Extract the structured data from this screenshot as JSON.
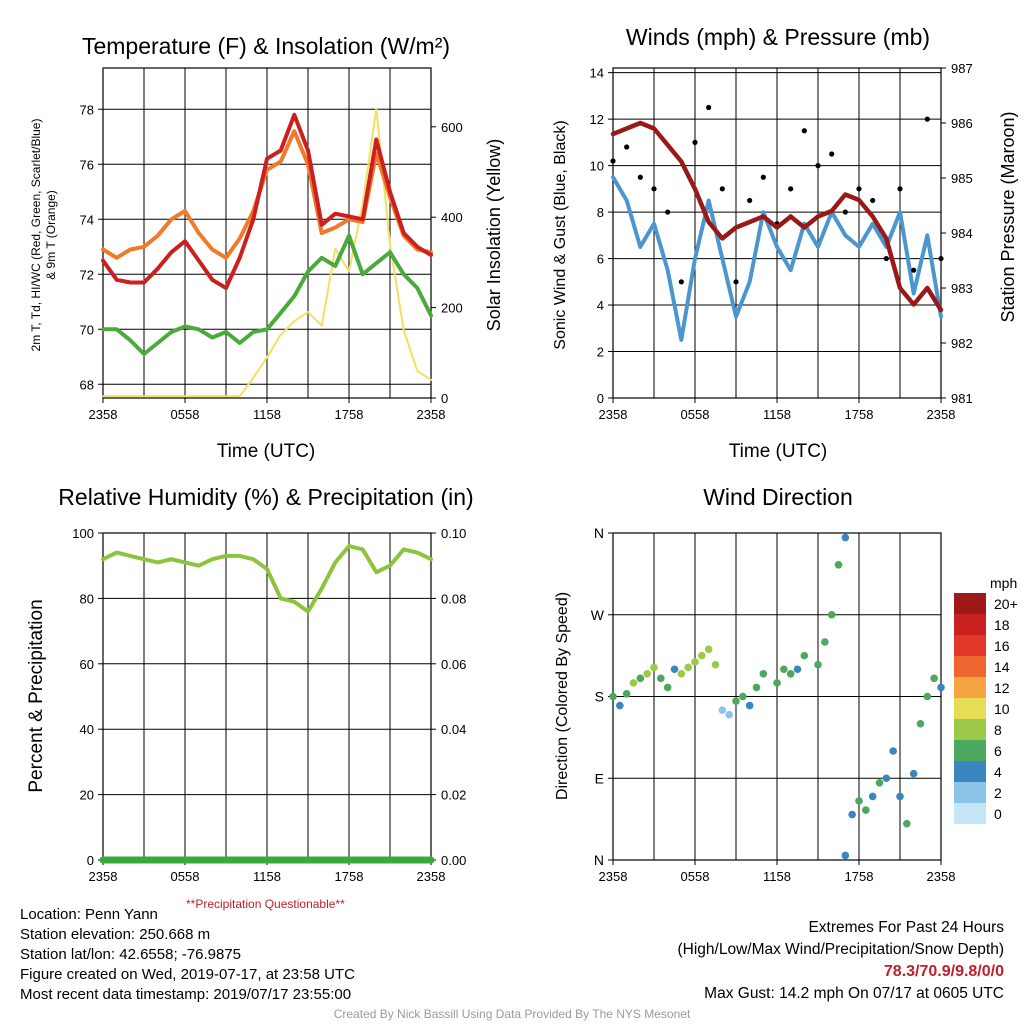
{
  "times": [
    "2358",
    "0558",
    "1158",
    "1758",
    "2358"
  ],
  "panels": {
    "temp": {
      "title": "Temperature (F) & Insolation (W/m²)",
      "ylabel_left_1": "2m T, Td, HI/WC (Red, Green, Scarlet/Blue)",
      "ylabel_left_2": "& 9m T (Orange)",
      "ylabel_right": "Solar Insolation (Yellow)",
      "xlabel": "Time (UTC)",
      "y_ticks": [
        "68",
        "70",
        "72",
        "74",
        "76",
        "78"
      ],
      "y2_ticks": [
        "0",
        "200",
        "400",
        "600"
      ]
    },
    "wind": {
      "title": "Winds (mph) & Pressure (mb)",
      "ylabel_left": "Sonic Wind & Gust (Blue, Black)",
      "ylabel_right": "Station Pressure (Maroon)",
      "xlabel": "Time (UTC)",
      "y_ticks": [
        "0",
        "2",
        "4",
        "6",
        "8",
        "10",
        "12",
        "14"
      ],
      "y2_ticks": [
        "981",
        "982",
        "983",
        "984",
        "985",
        "986",
        "987"
      ]
    },
    "rh": {
      "title": "Relative Humidity (%) & Precipitation (in)",
      "ylabel_left": "Percent & Precipitation",
      "y_ticks": [
        "0",
        "20",
        "40",
        "60",
        "80",
        "100"
      ],
      "y2_ticks": [
        "0.00",
        "0.02",
        "0.04",
        "0.06",
        "0.08",
        "0.10"
      ],
      "precip_note": "**Precipitation Questionable**"
    },
    "dir": {
      "title": "Wind Direction",
      "ylabel_left": "Direction (Colored By Speed)",
      "y_ticks": [
        "N",
        "E",
        "S",
        "W",
        "N"
      ],
      "legend_title": "mph",
      "legend_labels": [
        "20+",
        "18",
        "16",
        "14",
        "12",
        "10",
        "8",
        "6",
        "4",
        "2",
        "0"
      ],
      "legend_colors": [
        "#9e1a1a",
        "#c8211f",
        "#e2372b",
        "#ee6630",
        "#f5a540",
        "#e7dc55",
        "#9cc94a",
        "#4ba85e",
        "#3a86c0",
        "#8cc4e8",
        "#c5e6f7"
      ]
    }
  },
  "info": {
    "location": "Location: Penn Yann",
    "elevation": "Station elevation: 250.668 m",
    "latlon": "Station lat/lon: 42.6558; -76.9875",
    "created": "Figure created on Wed, 2019-07-17, at 23:58 UTC",
    "recent": "Most recent data timestamp: 2019/07/17 23:55:00"
  },
  "extremes": {
    "title": "Extremes For Past 24 Hours",
    "subtitle": "(High/Low/Max Wind/Precipitation/Snow Depth)",
    "values": "78.3/70.9/9.8/0/0",
    "gust": "Max Gust: 14.2 mph On 07/17 at 0605 UTC"
  },
  "credit": "Created By Nick Bassill Using Data Provided By The NYS Mesonet",
  "colors": {
    "temp": "#cc1f1f",
    "dewpoint": "#4aaa3c",
    "temp9m": "#f07a28",
    "insolation": "#f2e060",
    "wind": "#4b95d0",
    "gust": "#000000",
    "pressure": "#9b1818",
    "rh": "#8cc43e",
    "precip": "#3aa83a"
  },
  "chart_data": [
    {
      "type": "line",
      "title": "Temperature (F) & Insolation (W/m²)",
      "x_hours": [
        0,
        1,
        2,
        3,
        4,
        5,
        6,
        7,
        8,
        9,
        10,
        11,
        12,
        13,
        14,
        15,
        16,
        17,
        18,
        19,
        20,
        21,
        22,
        23,
        24
      ],
      "xlim": [
        0,
        24
      ],
      "ylim": [
        67.5,
        79.5
      ],
      "y2lim": [
        0,
        730
      ],
      "series": [
        {
          "key": "temp",
          "values": [
            72.5,
            71.8,
            71.7,
            71.7,
            72.2,
            72.8,
            73.2,
            72.5,
            71.8,
            71.5,
            72.6,
            74.0,
            76.2,
            76.5,
            77.8,
            76.5,
            73.8,
            74.2,
            74.1,
            74.0,
            76.9,
            75.0,
            73.5,
            73.0,
            72.7
          ]
        },
        {
          "key": "temp9m",
          "values": [
            72.9,
            72.6,
            72.9,
            73.0,
            73.4,
            74.0,
            74.3,
            73.5,
            72.9,
            72.6,
            73.3,
            74.3,
            75.8,
            76.1,
            77.2,
            76.0,
            73.5,
            73.7,
            74.0,
            73.9,
            76.4,
            74.8,
            73.4,
            72.9,
            72.8
          ]
        },
        {
          "key": "dewpoint",
          "values": [
            70.0,
            70.0,
            69.6,
            69.1,
            69.5,
            69.9,
            70.1,
            70.0,
            69.7,
            69.9,
            69.5,
            69.9,
            70.0,
            70.6,
            71.2,
            72.1,
            72.6,
            72.3,
            73.4,
            72.0,
            72.4,
            72.8,
            72.0,
            71.5,
            70.5
          ]
        },
        {
          "key": "insolation",
          "axis": "right",
          "values": [
            4,
            4,
            4,
            4,
            4,
            4,
            4,
            4,
            4,
            4,
            4,
            45,
            90,
            140,
            170,
            190,
            160,
            330,
            280,
            430,
            640,
            340,
            150,
            60,
            40
          ]
        }
      ]
    },
    {
      "type": "line",
      "title": "Winds (mph) & Pressure (mb)",
      "x_hours": [
        0,
        1,
        2,
        3,
        4,
        5,
        6,
        7,
        8,
        9,
        10,
        11,
        12,
        13,
        14,
        15,
        16,
        17,
        18,
        19,
        20,
        21,
        22,
        23,
        24
      ],
      "xlim": [
        0,
        24
      ],
      "ylim": [
        0,
        14.2
      ],
      "y2lim": [
        981,
        987
      ],
      "series": [
        {
          "key": "wind",
          "values": [
            9.5,
            8.5,
            6.5,
            7.5,
            5.5,
            2.5,
            6.0,
            8.5,
            6.0,
            3.5,
            5.0,
            8.0,
            6.5,
            5.5,
            7.5,
            6.5,
            8.0,
            7.0,
            6.5,
            7.5,
            6.5,
            8.0,
            4.5,
            7.0,
            3.5
          ]
        },
        {
          "key": "gust",
          "values": [
            10.2,
            10.8,
            9.5,
            9.0,
            8.0,
            5.0,
            11.0,
            12.5,
            9.0,
            5.0,
            8.5,
            9.5,
            7.5,
            9.0,
            11.5,
            10.0,
            10.5,
            8.0,
            9.0,
            8.5,
            6.0,
            9.0,
            5.5,
            12.0,
            6.0
          ]
        },
        {
          "key": "pressure",
          "axis": "right",
          "values": [
            985.8,
            985.9,
            986.0,
            985.9,
            985.6,
            985.3,
            984.8,
            984.2,
            983.9,
            984.1,
            984.2,
            984.3,
            984.1,
            984.3,
            984.1,
            984.3,
            984.4,
            984.7,
            984.6,
            984.3,
            983.9,
            983.0,
            982.7,
            983.0,
            982.6
          ]
        }
      ]
    },
    {
      "type": "line",
      "title": "Relative Humidity (%) & Precipitation (in)",
      "x_hours": [
        0,
        1,
        2,
        3,
        4,
        5,
        6,
        7,
        8,
        9,
        10,
        11,
        12,
        13,
        14,
        15,
        16,
        17,
        18,
        19,
        20,
        21,
        22,
        23,
        24
      ],
      "xlim": [
        0,
        24
      ],
      "ylim": [
        0,
        100
      ],
      "y2lim": [
        0,
        0.1
      ],
      "series": [
        {
          "key": "rh",
          "values": [
            92,
            94,
            93,
            92,
            91,
            92,
            91,
            90,
            92,
            93,
            93,
            92,
            89,
            80,
            79,
            76,
            83,
            91,
            96,
            95,
            88,
            90,
            95,
            94,
            92
          ]
        },
        {
          "key": "precip",
          "axis": "right",
          "values": [
            0,
            0,
            0,
            0,
            0,
            0,
            0,
            0,
            0,
            0,
            0,
            0,
            0,
            0,
            0,
            0,
            0,
            0,
            0,
            0,
            0,
            0,
            0,
            0,
            0
          ]
        }
      ]
    },
    {
      "type": "scatter",
      "title": "Wind Direction",
      "xlim": [
        0,
        24
      ],
      "ylim": [
        0,
        360
      ],
      "direction_deg": [
        [
          0,
          180
        ],
        [
          0.5,
          170
        ],
        [
          1,
          183
        ],
        [
          1.5,
          195
        ],
        [
          2,
          200
        ],
        [
          2.5,
          205
        ],
        [
          3,
          212
        ],
        [
          3.5,
          200
        ],
        [
          4,
          190
        ],
        [
          4.5,
          210
        ],
        [
          5,
          205
        ],
        [
          5.5,
          212
        ],
        [
          6,
          218
        ],
        [
          6.5,
          225
        ],
        [
          7,
          232
        ],
        [
          7.5,
          215
        ],
        [
          8,
          165
        ],
        [
          8.5,
          160
        ],
        [
          9,
          175
        ],
        [
          9.5,
          180
        ],
        [
          10,
          170
        ],
        [
          10.5,
          190
        ],
        [
          11,
          205
        ],
        [
          12,
          195
        ],
        [
          12.5,
          210
        ],
        [
          13,
          205
        ],
        [
          13.5,
          210
        ],
        [
          14,
          225
        ],
        [
          15,
          215
        ],
        [
          15.5,
          240
        ],
        [
          16,
          270
        ],
        [
          16.5,
          325
        ],
        [
          17,
          355
        ],
        [
          17,
          5
        ],
        [
          17.5,
          50
        ],
        [
          18,
          65
        ],
        [
          18.5,
          55
        ],
        [
          19,
          70
        ],
        [
          19.5,
          85
        ],
        [
          20,
          90
        ],
        [
          20.5,
          120
        ],
        [
          21,
          70
        ],
        [
          21.5,
          40
        ],
        [
          22,
          95
        ],
        [
          22.5,
          150
        ],
        [
          23,
          180
        ],
        [
          23.5,
          200
        ],
        [
          24,
          190
        ]
      ],
      "speed_mph": [
        5,
        4,
        6,
        7,
        6,
        8,
        7,
        6,
        5,
        4,
        7,
        7,
        8,
        7,
        8,
        7,
        1,
        1,
        5,
        5,
        4,
        6,
        5,
        5,
        6,
        5,
        4,
        5,
        6,
        5,
        6,
        6,
        4,
        4,
        4,
        5,
        6,
        4,
        5,
        4,
        4,
        4,
        5,
        4,
        6,
        5,
        6,
        4
      ]
    }
  ]
}
